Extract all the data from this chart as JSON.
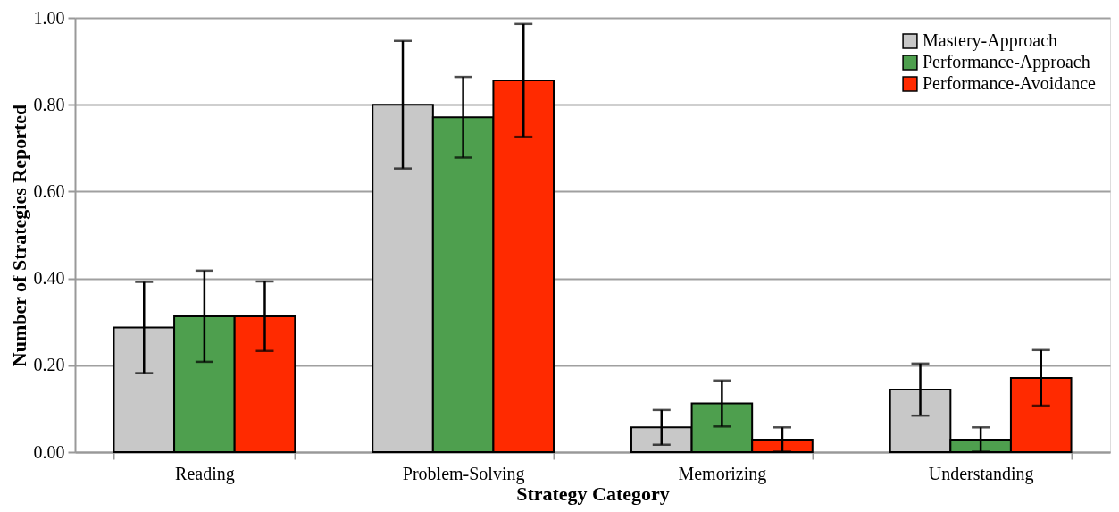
{
  "chart_data": {
    "type": "bar",
    "xlabel": "Strategy Category",
    "ylabel": "Number of Strategies Reported",
    "categories": [
      "Reading",
      "Problem-Solving",
      "Memorizing",
      "Understanding"
    ],
    "series": [
      {
        "name": "Mastery-Approach",
        "color": "#c8c8c8",
        "values": [
          0.287,
          0.8,
          0.057,
          0.144
        ],
        "errors": [
          0.105,
          0.147,
          0.04,
          0.06
        ]
      },
      {
        "name": "Performance-Approach",
        "color": "#4e9f4e",
        "values": [
          0.313,
          0.771,
          0.112,
          0.029
        ],
        "errors": [
          0.105,
          0.093,
          0.053,
          0.028
        ]
      },
      {
        "name": "Performance-Avoidance",
        "color": "#ff2a00",
        "values": [
          0.313,
          0.856,
          0.029,
          0.171
        ],
        "errors": [
          0.08,
          0.13,
          0.028,
          0.064
        ]
      }
    ],
    "ylim": [
      0,
      1
    ],
    "yticks": [
      {
        "value": 0,
        "label": "0.00"
      },
      {
        "value": 0.2,
        "label": "0.20"
      },
      {
        "value": 0.4,
        "label": "0.40"
      },
      {
        "value": 0.6,
        "label": "0.60"
      },
      {
        "value": 0.8,
        "label": "0.80"
      },
      {
        "value": 1,
        "label": "1.00"
      }
    ],
    "grid": "y",
    "legend": "top right"
  }
}
